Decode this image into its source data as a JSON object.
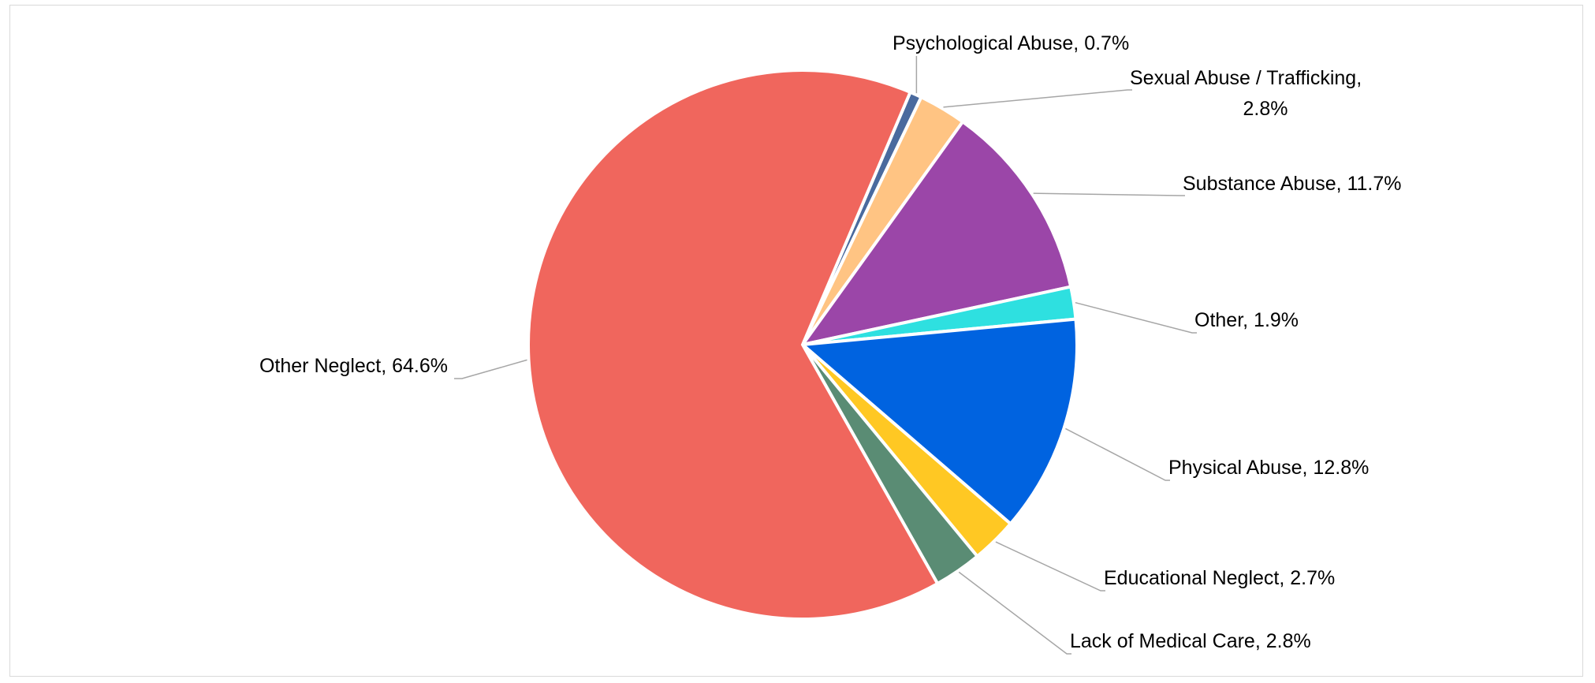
{
  "chart_data": {
    "type": "pie",
    "title": "",
    "start_angle_deg": 23.1,
    "legend": "none",
    "slices": [
      {
        "label": "Psychological Abuse",
        "value": 0.7,
        "pct_text": "0.7%",
        "color": "#4A6A9E"
      },
      {
        "label": "Sexual Abuse / Trafficking",
        "value": 2.8,
        "pct_text": "2.8%",
        "color": "#FFC483"
      },
      {
        "label": "Substance Abuse",
        "value": 11.7,
        "pct_text": "11.7%",
        "color": "#9B46A8"
      },
      {
        "label": "Other",
        "value": 1.9,
        "pct_text": "1.9%",
        "color": "#2EE0E0"
      },
      {
        "label": "Physical Abuse",
        "value": 12.8,
        "pct_text": "12.8%",
        "color": "#0063E0"
      },
      {
        "label": "Educational Neglect",
        "value": 2.7,
        "pct_text": "2.7%",
        "color": "#FFC823"
      },
      {
        "label": "Lack of Medical Care",
        "value": 2.8,
        "pct_text": "2.8%",
        "color": "#5A8C74"
      },
      {
        "label": "Other Neglect",
        "value": 64.6,
        "pct_text": "64.6%",
        "color": "#F0665D"
      }
    ]
  }
}
